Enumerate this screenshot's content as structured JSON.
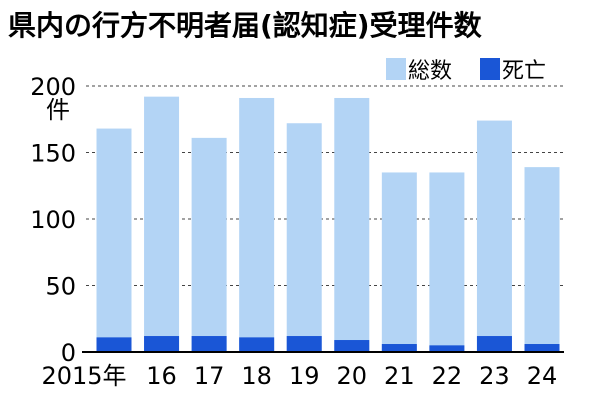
{
  "chart_data": {
    "type": "bar",
    "stacked": true,
    "title": "県内の行方不明者届(認知症)受理件数",
    "y_unit": "件",
    "categories": [
      "2015年",
      "16",
      "17",
      "18",
      "19",
      "20",
      "21",
      "22",
      "23",
      "24"
    ],
    "series": [
      {
        "name": "死亡",
        "values": [
          11,
          12,
          12,
          11,
          12,
          9,
          6,
          5,
          12,
          6
        ],
        "color": "#1a56d6"
      },
      {
        "name": "総数",
        "values": [
          168,
          192,
          161,
          191,
          172,
          191,
          135,
          135,
          174,
          139
        ],
        "color": "#b3d4f5"
      }
    ],
    "ylim": [
      0,
      200
    ],
    "yticks": [
      0,
      50,
      100,
      150,
      200
    ],
    "grid": true,
    "legend_position": "top-right"
  }
}
